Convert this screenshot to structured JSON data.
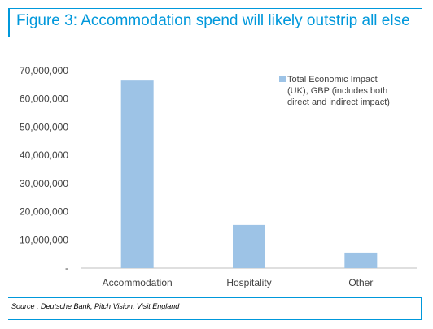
{
  "title": "Figure 3: Accommodation spend will likely outstrip all else",
  "source": "Source : Deutsche Bank, Pitch Vision, Visit England",
  "colors": {
    "accent": "#0098db",
    "bar": "#9dc3e6",
    "axis": "#bfbfbf",
    "text": "#404040"
  },
  "chart_data": {
    "type": "bar",
    "categories": [
      "Accommodation",
      "Hospitality",
      "Other"
    ],
    "series": [
      {
        "name": "Total Economic Impact (UK), GBP (includes both direct and indirect impact)",
        "values": [
          66500000,
          15300000,
          5500000
        ]
      }
    ],
    "legend_lines": [
      "Total Economic Impact",
      "(UK), GBP (includes both",
      "direct and indirect impact)"
    ],
    "legend_position": "top-right",
    "y_ticks": [
      "-",
      "10,000,000",
      "20,000,000",
      "30,000,000",
      "40,000,000",
      "50,000,000",
      "60,000,000",
      "70,000,000"
    ],
    "ylim": [
      0,
      70000000
    ],
    "grid": false
  }
}
